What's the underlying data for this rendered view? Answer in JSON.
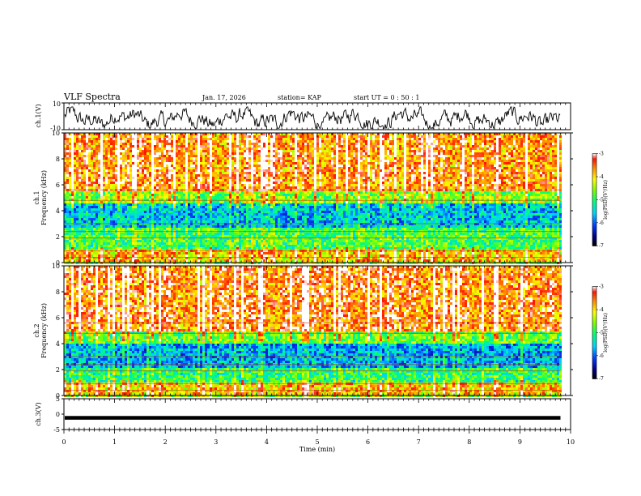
{
  "header": {
    "title": "VLF Spectra",
    "date": "Jan. 17, 2026",
    "station": "station= KAP",
    "start": "start  UT =   0 : 50 : 1"
  },
  "chart_data": [
    {
      "type": "line",
      "name": "ch1-waveform",
      "ylabel": "ch.1(V)",
      "ylim": [
        -10,
        10
      ],
      "yticks": [
        "10",
        "-10"
      ],
      "x_range_min": [
        0,
        9.8
      ],
      "description_units": "V"
    },
    {
      "type": "heatmap",
      "name": "ch1-spectrogram",
      "ylabel": "ch.1\nFrequency (kHz)",
      "ylabel_lines": [
        "ch.1",
        "Frequency  (kHz)"
      ],
      "ylim": [
        0,
        10
      ],
      "yticks": [
        "0",
        "2",
        "4",
        "6",
        "8",
        "10"
      ],
      "colorbar": {
        "label": "log(PSD)(V²/Hz)",
        "ticks": [
          "-3",
          "-4",
          "-5",
          "-6",
          "-7"
        ],
        "range": [
          -7,
          -3
        ]
      },
      "bands": [
        {
          "f_low": 5.5,
          "f_high": 10,
          "level": -3.6
        },
        {
          "f_low": 4.5,
          "f_high": 5.5,
          "level": -4.6
        },
        {
          "f_low": 2.6,
          "f_high": 4.5,
          "level": -5.6
        },
        {
          "f_low": 1.0,
          "f_high": 2.6,
          "level": -4.9
        },
        {
          "f_low": 0,
          "f_high": 1.0,
          "level": -3.9
        }
      ]
    },
    {
      "type": "heatmap",
      "name": "ch2-spectrogram",
      "ylabel_lines": [
        "ch.2",
        "Frequency  (kHz)"
      ],
      "ylim": [
        0,
        10
      ],
      "yticks": [
        "0",
        "2",
        "4",
        "6",
        "8",
        "10"
      ],
      "colorbar": {
        "label": "log(PSD)(V²/Hz)",
        "ticks": [
          "-3",
          "-4",
          "-5",
          "-6",
          "-7"
        ],
        "range": [
          -7,
          -3
        ]
      },
      "bands": [
        {
          "f_low": 5.0,
          "f_high": 10,
          "level": -3.5
        },
        {
          "f_low": 4.0,
          "f_high": 5.0,
          "level": -4.7
        },
        {
          "f_low": 2.2,
          "f_high": 4.0,
          "level": -5.7
        },
        {
          "f_low": 1.0,
          "f_high": 2.2,
          "level": -5.0
        },
        {
          "f_low": 0,
          "f_high": 1.0,
          "level": -3.9
        }
      ]
    },
    {
      "type": "line",
      "name": "ch3-waveform",
      "ylabel": "ch.3(V)",
      "ylim": [
        -5,
        5
      ],
      "yticks": [
        "5",
        "0",
        "-5"
      ],
      "level_V": [
        -0.6,
        -1.8
      ]
    }
  ],
  "xaxis": {
    "label": "Time  (min)",
    "range": [
      0,
      10
    ],
    "ticks": [
      "0",
      "1",
      "2",
      "3",
      "4",
      "5",
      "6",
      "7",
      "8",
      "9",
      "10"
    ],
    "data_end_min": 9.8
  }
}
